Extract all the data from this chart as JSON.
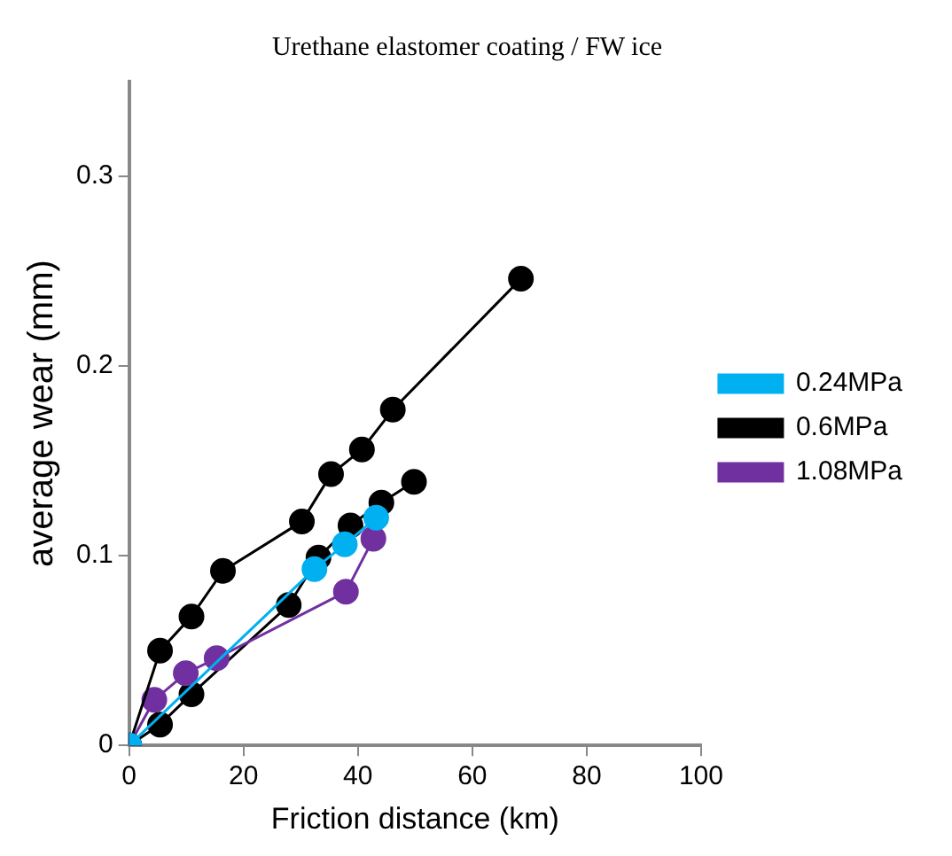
{
  "chart_data": {
    "type": "line",
    "title": "Urethane elastomer coating / FW ice",
    "xlabel": "Friction distance (km)",
    "ylabel": "average wear (mm)",
    "xlim": [
      0,
      100
    ],
    "xticks": [
      0,
      20,
      40,
      60,
      80,
      100
    ],
    "ylim": [
      0,
      0.35
    ],
    "yticks": [
      0,
      0.1,
      0.2,
      0.3
    ],
    "grid": false,
    "legend": "right",
    "marker": "circle",
    "line_style": "solid",
    "series": [
      {
        "name": "0.24MPa",
        "color": "#00b0f0",
        "x": [
          0,
          32.4,
          37.7,
          43.2
        ],
        "values": [
          0,
          0.093,
          0.106,
          0.12
        ]
      },
      {
        "name": "0.6MPa",
        "color": "#000000",
        "x": [
          0,
          5.4,
          10.9,
          16.4,
          30.2,
          35.3,
          40.7,
          46.1,
          68.5
        ],
        "values": [
          0,
          0.05,
          0.068,
          0.092,
          0.118,
          0.143,
          0.156,
          0.177,
          0.246
        ]
      },
      {
        "name": "1.08MPa",
        "color": "#7030a0",
        "x": [
          0,
          4.4,
          9.9,
          15.3,
          37.9,
          42.7
        ],
        "values": [
          0,
          0.024,
          0.038,
          0.046,
          0.081,
          0.109
        ]
      },
      {
        "color": "#000000",
        "x": [
          0,
          5.4,
          10.9,
          27.9,
          33.1,
          38.7,
          44.1,
          49.8
        ],
        "values": [
          0,
          0.011,
          0.027,
          0.074,
          0.099,
          0.116,
          0.128,
          0.139
        ]
      }
    ]
  }
}
